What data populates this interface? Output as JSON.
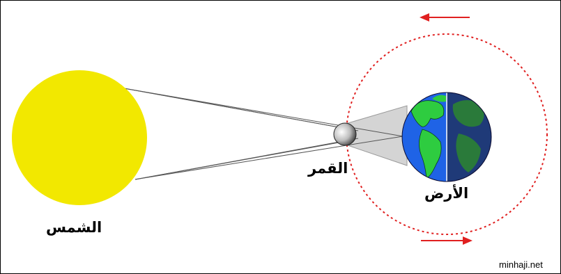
{
  "labels": {
    "sun": "الشمس",
    "moon": "القمر",
    "earth": "الأرض"
  },
  "credit": "minhaji.net",
  "colors": {
    "background": "#ffffff",
    "frame": "#000000",
    "sun": "#f2e800",
    "orbit": "#e02020",
    "arrow": "#e02020",
    "ray_line": "#555555",
    "shadow_cone": "#d4d4d4",
    "ocean_day": "#1f63e6",
    "land_day": "#2ecc40",
    "ocean_night": "#1f3a78",
    "land_night": "#2a7a3a"
  },
  "icons": {
    "sun": "sun-disk",
    "moon": "moon-sphere",
    "earth": "earth-globe",
    "orbit": "dashed-orbit-circle",
    "arrows": "direction-arrow"
  }
}
